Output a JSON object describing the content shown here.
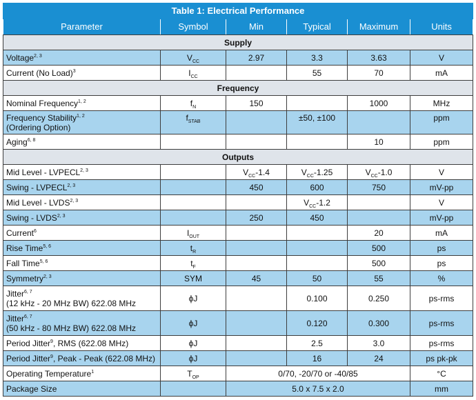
{
  "title": "Table 1: Electrical Performance",
  "headers": [
    "Parameter",
    "Symbol",
    "Min",
    "Typical",
    "Maximum",
    "Units"
  ],
  "sections": {
    "supply": "Supply",
    "frequency": "Frequency",
    "outputs": "Outputs"
  },
  "rows": [
    {
      "param": "Voltage",
      "sup": "2, 3",
      "sym": "V",
      "symsub": "CC",
      "min": "2.97",
      "typ": "3.3",
      "max": "3.63",
      "unit": "V"
    },
    {
      "param": "Current (No Load)",
      "sup": "3",
      "sym": "I",
      "symsub": "CC",
      "min": "",
      "typ": "55",
      "max": "70",
      "unit": "mA"
    },
    {
      "param": "Nominal Frequency",
      "sup": "1, 2",
      "sym": "f",
      "symsub": "N",
      "min": "150",
      "typ": "",
      "max": "1000",
      "unit": "MHz"
    },
    {
      "param": "Frequency Stability",
      "sup": "1, 2",
      "param2": "(Ordering Option)",
      "sym": "f",
      "symsub": "STAB",
      "min": "",
      "typ": "±50, ±100",
      "max": "",
      "unit": "ppm"
    },
    {
      "param": "Aging",
      "sup": "6, 8",
      "sym": "",
      "symsub": "",
      "min": "",
      "typ": "",
      "max": "10",
      "unit": "ppm"
    },
    {
      "param": "Mid Level - LVPECL",
      "sup": "2, 3",
      "sym": "",
      "symsub": "",
      "min_pre": "V",
      "min_sub": "CC",
      "min_post": "-1.4",
      "typ_pre": "V",
      "typ_sub": "CC",
      "typ_post": "-1.25",
      "max_pre": "V",
      "max_sub": "CC",
      "max_post": "-1.0",
      "unit": "V"
    },
    {
      "param": "Swing - LVPECL",
      "sup": "2, 3",
      "sym": "",
      "symsub": "",
      "min": "450",
      "typ": "600",
      "max": "750",
      "unit": "mV-pp"
    },
    {
      "param": "Mid Level - LVDS",
      "sup": "2, 3",
      "sym": "",
      "symsub": "",
      "min": "",
      "typ_pre": "V",
      "typ_sub": "CC",
      "typ_post": "-1.2",
      "max": "",
      "unit": "V"
    },
    {
      "param": "Swing - LVDS",
      "sup": "2, 3",
      "sym": "",
      "symsub": "",
      "min": "250",
      "typ": "450",
      "max": "",
      "unit": "mV-pp"
    },
    {
      "param": "Current",
      "sup": "6",
      "sym": "I",
      "symsub": "OUT",
      "min": "",
      "typ": "",
      "max": "20",
      "unit": "mA"
    },
    {
      "param": "Rise Time",
      "sup": "5, 6",
      "sym": "t",
      "symsub": "R",
      "min": "",
      "typ": "",
      "max": "500",
      "unit": "ps"
    },
    {
      "param": "Fall Time",
      "sup": "5, 6",
      "sym": "t",
      "symsub": "F",
      "min": "",
      "typ": "",
      "max": "500",
      "unit": "ps"
    },
    {
      "param": "Symmetry",
      "sup": "2, 3",
      "sym": "SYM",
      "symsub": "",
      "min": "45",
      "typ": "50",
      "max": "55",
      "unit": "%"
    },
    {
      "param": "Jitter",
      "sup": "6, 7",
      "param2": "(12 kHz - 20 MHz BW) 622.08 MHz",
      "sym": "ϕJ",
      "symsub": "",
      "min": "",
      "typ": "0.100",
      "max": "0.250",
      "unit": "ps-rms"
    },
    {
      "param": "Jitter",
      "sup": "6, 7",
      "param2": "(50 kHz - 80 MHz BW) 622.08 MHz",
      "sym": "ϕJ",
      "symsub": "",
      "min": "",
      "typ": "0.120",
      "max": "0.300",
      "unit": "ps-rms"
    },
    {
      "param": "Period Jitter",
      "sup": "9",
      "param_post": ", RMS (622.08 MHz)",
      "sym": "ϕJ",
      "symsub": "",
      "min": "",
      "typ": "2.5",
      "max": "3.0",
      "unit": "ps-rms"
    },
    {
      "param": "Period Jitter",
      "sup": "9",
      "param_post": ", Peak - Peak (622.08 MHz)",
      "sym": "ϕJ",
      "symsub": "",
      "min": "",
      "typ": "16",
      "max": "24",
      "unit": "ps pk-pk"
    },
    {
      "param": "Operating Temperature",
      "sup": "1",
      "sym": "T",
      "symsub": "OP",
      "span": "0/70, -20/70 or -40/85",
      "unit": "°C"
    },
    {
      "param": "Package Size",
      "sup": "",
      "sym": "",
      "symsub": "",
      "span": "5.0 x 7.5 x 2.0",
      "unit": "mm"
    }
  ]
}
